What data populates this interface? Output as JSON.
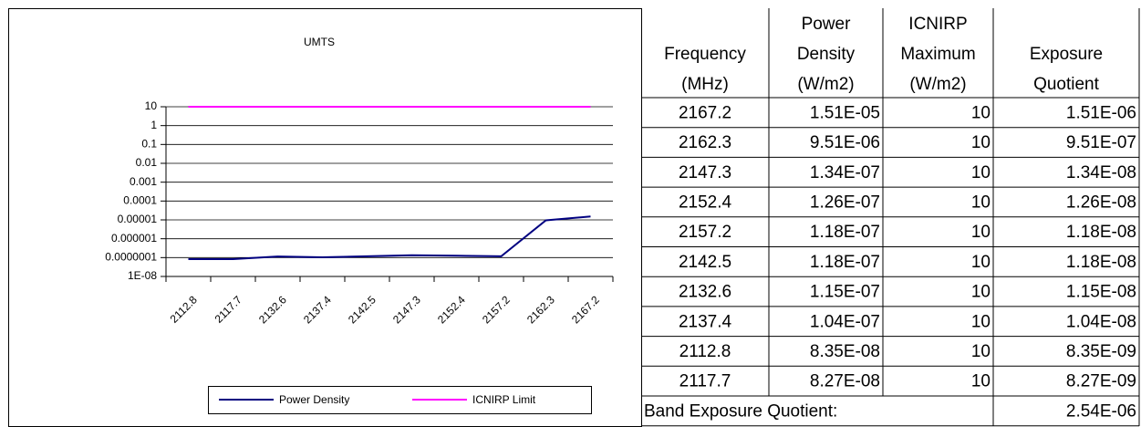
{
  "chart_data": {
    "type": "line",
    "title": "UMTS",
    "categories": [
      "2112.8",
      "2117.7",
      "2132.6",
      "2137.4",
      "2142.5",
      "2147.3",
      "2152.4",
      "2157.2",
      "2162.3",
      "2167.2"
    ],
    "series": [
      {
        "name": "Power Density",
        "color": "#000080",
        "values": [
          8.35e-08,
          8.27e-08,
          1.15e-07,
          1.04e-07,
          1.18e-07,
          1.34e-07,
          1.26e-07,
          1.18e-07,
          9.51e-06,
          1.51e-05
        ]
      },
      {
        "name": "ICNIRP Limit",
        "color": "#ff00ff",
        "values": [
          10,
          10,
          10,
          10,
          10,
          10,
          10,
          10,
          10,
          10
        ]
      }
    ],
    "log_y": true,
    "ylim": [
      1e-08,
      10
    ],
    "yticks": [
      10,
      1,
      0.1,
      0.01,
      0.001,
      0.0001,
      1e-05,
      1e-06,
      {
        "value": 1e-07,
        "label": "0.0000001"
      },
      {
        "value": 1e-08,
        "label": "1E-08"
      }
    ],
    "grid": true,
    "legend": "bottom"
  },
  "table": {
    "header": [
      [
        "Frequency",
        "(MHz)"
      ],
      [
        "Power",
        "Density",
        "(W/m2)"
      ],
      [
        "ICNIRP",
        "Maximum",
        "(W/m2)"
      ],
      [
        "Exposure",
        "Quotient"
      ]
    ],
    "rows": [
      [
        "2167.2",
        "1.51E-05",
        "10",
        "1.51E-06"
      ],
      [
        "2162.3",
        "9.51E-06",
        "10",
        "9.51E-07"
      ],
      [
        "2147.3",
        "1.34E-07",
        "10",
        "1.34E-08"
      ],
      [
        "2152.4",
        "1.26E-07",
        "10",
        "1.26E-08"
      ],
      [
        "2157.2",
        "1.18E-07",
        "10",
        "1.18E-08"
      ],
      [
        "2142.5",
        "1.18E-07",
        "10",
        "1.18E-08"
      ],
      [
        "2132.6",
        "1.15E-07",
        "10",
        "1.15E-08"
      ],
      [
        "2137.4",
        "1.04E-07",
        "10",
        "1.04E-08"
      ],
      [
        "2112.8",
        "8.35E-08",
        "10",
        "8.35E-09"
      ],
      [
        "2117.7",
        "8.27E-08",
        "10",
        "8.27E-09"
      ]
    ],
    "footer": [
      "Band Exposure Quotient:",
      "2.54E-06"
    ]
  }
}
